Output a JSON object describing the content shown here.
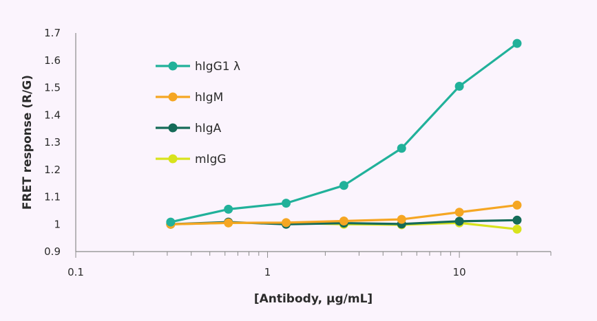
{
  "chart_data": {
    "type": "line",
    "xlabel": "[Antibody, µg/mL]",
    "ylabel": "FRET response (R/G)",
    "xscale": "log",
    "xlim": [
      0.1,
      30
    ],
    "ylim": [
      0.9,
      1.7
    ],
    "x_ticks": [
      {
        "value": 0.1,
        "label": "0.1"
      },
      {
        "value": 1,
        "label": "1"
      },
      {
        "value": 10,
        "label": "10"
      }
    ],
    "y_ticks": [
      {
        "value": 0.9,
        "label": "0.9"
      },
      {
        "value": 1.0,
        "label": "1"
      },
      {
        "value": 1.1,
        "label": "1.1"
      },
      {
        "value": 1.2,
        "label": "1.2"
      },
      {
        "value": 1.3,
        "label": "1.3"
      },
      {
        "value": 1.4,
        "label": "1.4"
      },
      {
        "value": 1.5,
        "label": "1.5"
      },
      {
        "value": 1.6,
        "label": "1.6"
      },
      {
        "value": 1.7,
        "label": "1.7"
      }
    ],
    "grid": false,
    "legend_position": "top-left",
    "x": [
      0.3125,
      0.625,
      1.25,
      2.5,
      5,
      10,
      20
    ],
    "series": [
      {
        "name": "hIgG1 λ",
        "color": "#21b19a",
        "values": [
          1.008,
          1.055,
          1.077,
          1.142,
          1.278,
          1.505,
          1.662
        ]
      },
      {
        "name": "hIgM",
        "color": "#f5a623",
        "values": [
          1.0,
          1.005,
          1.006,
          1.012,
          1.018,
          1.044,
          1.07
        ]
      },
      {
        "name": "hIgA",
        "color": "#156b58",
        "values": [
          1.0,
          1.008,
          1.0,
          1.004,
          1.001,
          1.011,
          1.015
        ]
      },
      {
        "name": "mIgG",
        "color": "#d8e31d",
        "values": [
          1.0,
          1.005,
          1.005,
          1.0,
          0.998,
          1.005,
          0.982
        ]
      }
    ]
  }
}
